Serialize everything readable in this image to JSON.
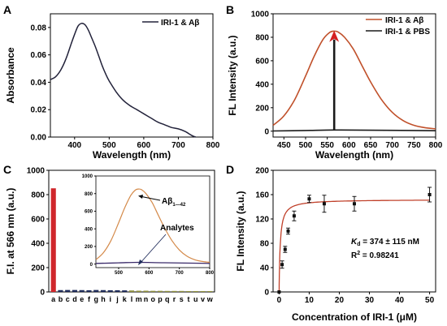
{
  "chart_data": [
    {
      "panel": "A",
      "type": "line",
      "xlabel": "Wavelength (nm)",
      "ylabel": "Absorbance",
      "xlim": [
        330,
        800
      ],
      "ylim": [
        0,
        0.09
      ],
      "xticks": [
        400,
        500,
        600,
        700,
        800
      ],
      "yticks": [
        0.0,
        0.02,
        0.04,
        0.06,
        0.08
      ],
      "ytick_labels": [
        "0.00",
        "0.02",
        "0.04",
        "0.06",
        "0.08"
      ],
      "legend_position": "top-right",
      "series": [
        {
          "name": "IRI-1 & Aβ",
          "color": "#22223a",
          "x": [
            330,
            345,
            360,
            375,
            390,
            400,
            410,
            420,
            430,
            440,
            450,
            460,
            470,
            480,
            490,
            500,
            520,
            540,
            560,
            580,
            600,
            620,
            640,
            660,
            680,
            700,
            720,
            740,
            750
          ],
          "y": [
            0.042,
            0.044,
            0.049,
            0.057,
            0.068,
            0.075,
            0.081,
            0.083,
            0.082,
            0.078,
            0.072,
            0.066,
            0.059,
            0.052,
            0.046,
            0.041,
            0.033,
            0.027,
            0.023,
            0.02,
            0.017,
            0.014,
            0.011,
            0.009,
            0.007,
            0.006,
            0.004,
            0.001,
            0.0
          ]
        }
      ]
    },
    {
      "panel": "B",
      "type": "line",
      "xlabel": "Wavelength (nm)",
      "ylabel": "FL Intensity (a.u.)",
      "xlim": [
        425,
        800
      ],
      "ylim": [
        -50,
        1000
      ],
      "xticks": [
        450,
        500,
        550,
        600,
        650,
        700,
        750,
        800
      ],
      "yticks": [
        0,
        200,
        400,
        600,
        800,
        1000
      ],
      "legend_position": "top-right",
      "series": [
        {
          "name": "IRI-1 & Aβ",
          "color": "#c0502a",
          "x": [
            425,
            450,
            475,
            500,
            520,
            540,
            555,
            565,
            575,
            590,
            610,
            630,
            650,
            675,
            700,
            725,
            750,
            775,
            800
          ],
          "y": [
            50,
            130,
            270,
            470,
            640,
            780,
            840,
            852,
            845,
            800,
            700,
            560,
            420,
            270,
            160,
            90,
            50,
            30,
            20
          ]
        },
        {
          "name": "IRI-1 & PBS",
          "color": "#1a1a1a",
          "x": [
            425,
            500,
            566,
            650,
            800
          ],
          "y": [
            2,
            6,
            10,
            8,
            4
          ]
        }
      ],
      "annotations": [
        {
          "type": "arrow",
          "x": 566,
          "from_y": 10,
          "to_y": 850,
          "color": "#1a1a1a",
          "head_color": "#d42020"
        }
      ]
    },
    {
      "panel": "C",
      "type": "bar",
      "xlabel": "",
      "ylabel": "F.I. at 566 nm (a.u.)",
      "ylim": [
        0,
        1000
      ],
      "yticks": [
        0,
        200,
        400,
        600,
        800,
        1000
      ],
      "categories": [
        "a",
        "b",
        "c",
        "d",
        "e",
        "f",
        "g",
        "h",
        "i",
        "j",
        "k",
        "l",
        "m",
        "n",
        "o",
        "p",
        "q",
        "r",
        "s",
        "t",
        "u",
        "v",
        "w"
      ],
      "values": [
        852,
        15,
        16,
        16,
        15,
        14,
        16,
        15,
        14,
        14,
        13,
        12,
        10,
        10,
        9,
        9,
        8,
        8,
        8,
        7,
        7,
        7,
        7
      ],
      "colors": [
        "#d0262b",
        "#1e2b5a",
        "#1e2b5a",
        "#1e2b5a",
        "#1e2b5a",
        "#1e2b5a",
        "#1e2b5a",
        "#1e2b5a",
        "#1e2b5a",
        "#1e2b5a",
        "#1e2b5a",
        "#8d8f3a",
        "#8d8f3a",
        "#8d8f3a",
        "#8d8f3a",
        "#8d8f3a",
        "#8d8f3a",
        "#8d8f3a",
        "#8d8f3a",
        "#8d8f3a",
        "#8d8f3a",
        "#8d8f3a",
        "#8d8f3a"
      ],
      "inset": {
        "type": "line",
        "xlim": [
          425,
          800
        ],
        "ylim": [
          -40,
          1000
        ],
        "xticks": [
          500,
          600,
          700,
          800
        ],
        "yticks": [
          0,
          200,
          400,
          600,
          800,
          1000
        ],
        "series": [
          {
            "name": "Aβ1—42",
            "color": "#d48a4a",
            "x": [
              425,
              450,
              475,
              500,
              520,
              540,
              555,
              565,
              575,
              590,
              610,
              630,
              650,
              675,
              700,
              725,
              750,
              775,
              800
            ],
            "y": [
              50,
              130,
              270,
              470,
              640,
              780,
              840,
              852,
              845,
              800,
              700,
              560,
              420,
              270,
              160,
              90,
              50,
              30,
              20
            ]
          },
          {
            "name": "Analytes",
            "color": "#3a2a6a",
            "x": [
              425,
              500,
              566,
              650,
              800
            ],
            "y": [
              8,
              14,
              20,
              15,
              8
            ]
          }
        ],
        "labels": {
          "abeta_main": "Aβ",
          "abeta_sub": "1—42",
          "analytes": "Analytes"
        }
      }
    },
    {
      "panel": "D",
      "type": "scatter",
      "xlabel": "Concentration of IRI-1 (μM)",
      "ylabel": "FL Intensity (a.u.)",
      "xlim": [
        -2,
        52
      ],
      "ylim": [
        0,
        200
      ],
      "xticks": [
        0,
        10,
        20,
        30,
        40,
        50
      ],
      "yticks": [
        0,
        40,
        80,
        120,
        160,
        200
      ],
      "points": {
        "x": [
          0,
          1,
          2,
          3,
          5,
          10,
          15,
          25,
          50
        ],
        "y": [
          0,
          45,
          70,
          100,
          125,
          153,
          145,
          145,
          160
        ],
        "err": [
          0,
          6,
          5,
          5,
          8,
          6,
          14,
          12,
          12
        ]
      },
      "fit": {
        "model": "Bmax*x/(Kd+x)",
        "Bmax": 152,
        "Kd": 0.374,
        "color": "#c0402a"
      },
      "annotation": {
        "kd_symbol": "K",
        "kd_sub": "d",
        "kd_value": " = 374 ± 115 nM",
        "r2_label": "R",
        "r2_sup": "2",
        "r2_value": " = 0.98241"
      }
    }
  ],
  "panel_letters": [
    "A",
    "B",
    "C",
    "D"
  ]
}
